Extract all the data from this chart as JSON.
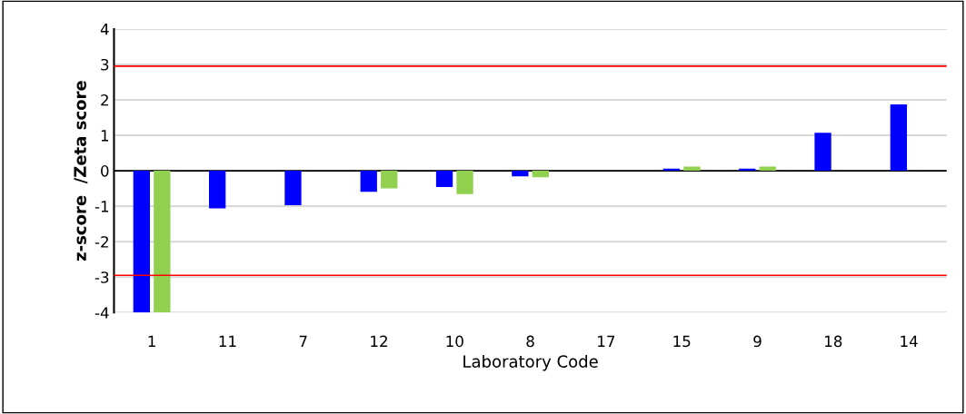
{
  "chart_data": {
    "type": "bar",
    "xlabel": "Laboratory Code",
    "ylabel": "z-score  /Zeta score",
    "categories": [
      "1",
      "11",
      "7",
      "12",
      "10",
      "8",
      "17",
      "15",
      "9",
      "18",
      "14"
    ],
    "series": [
      {
        "color": "#0000ff",
        "values": [
          -4,
          -1.06,
          -0.97,
          -0.59,
          -0.46,
          -0.16,
          null,
          0.06,
          0.06,
          1.07,
          1.87
        ]
      },
      {
        "color": "#92d050",
        "values": [
          -4,
          null,
          null,
          -0.5,
          -0.66,
          -0.18,
          null,
          0.12,
          0.12,
          null,
          null
        ]
      }
    ],
    "ylim": [
      -4,
      4
    ],
    "yticks": [
      -4,
      -3,
      -2,
      -1,
      0,
      1,
      2,
      3,
      4
    ],
    "grid": "y",
    "ref_lines": [
      {
        "axis": "y",
        "value": 2.95,
        "color": "#ff0000"
      },
      {
        "axis": "y",
        "value": -2.95,
        "color": "#ff0000"
      }
    ]
  }
}
